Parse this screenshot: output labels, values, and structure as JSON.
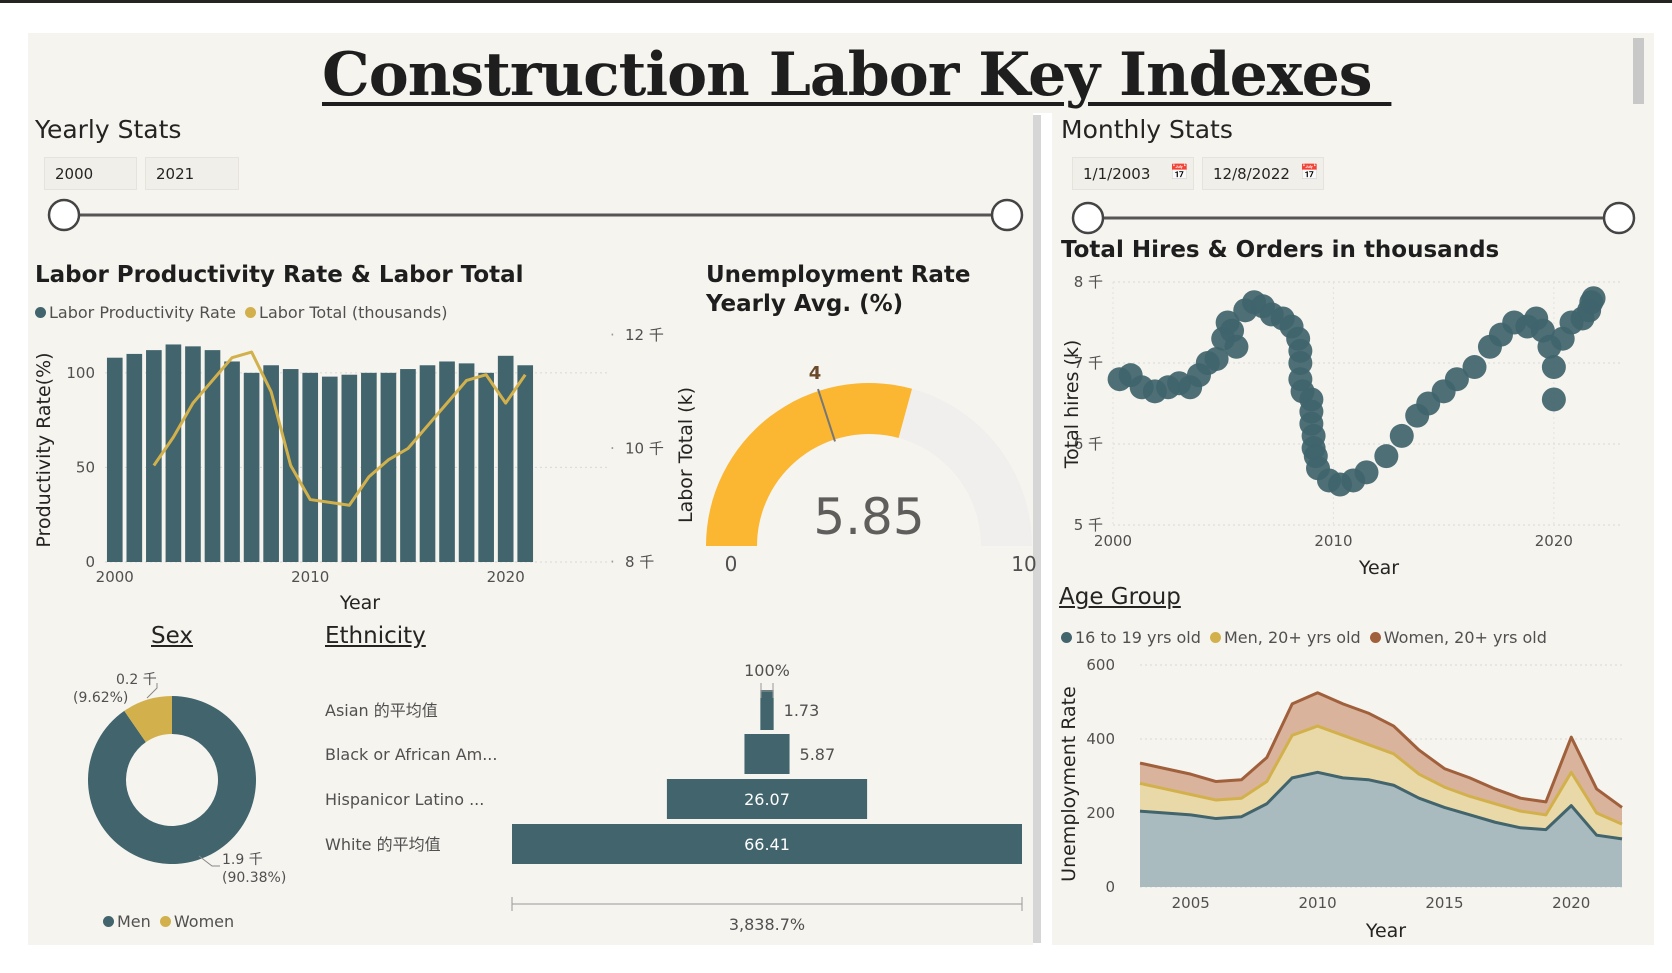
{
  "title": "Construction Labor Key Indexes ",
  "colors": {
    "teal": "#41646d",
    "gold": "#d2b14c",
    "brown": "#a0603c",
    "gaugeFill": "#fbb632",
    "gaugeTrack": "#f0efed",
    "panel": "#f6f4ef"
  },
  "yearly": {
    "section_label": "Yearly Stats",
    "range_start": "2000",
    "range_end": "2021"
  },
  "monthly": {
    "section_label": "Monthly Stats",
    "date_start": "1/1/2003",
    "date_end": "12/8/2022",
    "calendar_icon": "calendar-icon"
  },
  "productivity": {
    "title": "Labor Productivity Rate & Labor Total",
    "legend": [
      "Labor Productivity Rate",
      "Labor Total (thousands)"
    ],
    "chart_data": {
      "type": "bar",
      "xlabel": "Year",
      "ylabel": "Productivity Rate(%)",
      "y2label": "Labor Total (k)",
      "ylim": [
        0,
        120
      ],
      "y2lim": [
        8,
        12
      ],
      "x_ticks": [
        "2000",
        "2010",
        "2020"
      ],
      "y_ticks": [
        "0",
        "50",
        "100"
      ],
      "y2_ticks": [
        "8 千",
        "10 千",
        "12 千"
      ],
      "categories": [
        2000,
        2001,
        2002,
        2003,
        2004,
        2005,
        2006,
        2007,
        2008,
        2009,
        2010,
        2011,
        2012,
        2013,
        2014,
        2015,
        2016,
        2017,
        2018,
        2019,
        2020,
        2021
      ],
      "series": [
        {
          "name": "Labor Productivity Rate",
          "type": "bar",
          "values": [
            108,
            110,
            112,
            115,
            114,
            112,
            106,
            100,
            104,
            102,
            100,
            98,
            99,
            100,
            100,
            102,
            104,
            106,
            105,
            100,
            109,
            104
          ]
        },
        {
          "name": "Labor Total (thousands)",
          "type": "line",
          "values": [
            null,
            null,
            9.7,
            10.2,
            10.8,
            11.2,
            11.6,
            11.7,
            11.0,
            9.7,
            9.1,
            9.05,
            9.0,
            9.5,
            9.8,
            10.0,
            10.4,
            10.8,
            11.2,
            11.3,
            10.8,
            11.3
          ]
        }
      ]
    }
  },
  "unemployment_gauge": {
    "title_line1": "Unemployment Rate",
    "title_line2": "Yearly Avg. (%)",
    "chart_data": {
      "type": "gauge",
      "value": 5.85,
      "value_label": "5.85",
      "target": 4,
      "target_label": "4",
      "min": 0,
      "max": 10,
      "min_label": "0",
      "max_label": "10"
    }
  },
  "hires": {
    "title": "Total Hires & Orders in thousands",
    "chart_data": {
      "type": "scatter",
      "xlabel": "Year",
      "ylabel": "Total hires (k)",
      "xlim": [
        2000,
        2023
      ],
      "ylim": [
        5,
        8
      ],
      "x_ticks": [
        "2000",
        "2010",
        "2020"
      ],
      "y_ticks": [
        "5 千",
        "6 千",
        "7 千",
        "8 千"
      ],
      "points": [
        [
          2000.3,
          6.8
        ],
        [
          2000.8,
          6.85
        ],
        [
          2001.3,
          6.7
        ],
        [
          2001.9,
          6.65
        ],
        [
          2002.5,
          6.7
        ],
        [
          2003.0,
          6.75
        ],
        [
          2003.5,
          6.7
        ],
        [
          2003.9,
          6.85
        ],
        [
          2004.3,
          7.0
        ],
        [
          2004.7,
          7.05
        ],
        [
          2005.0,
          7.3
        ],
        [
          2005.2,
          7.5
        ],
        [
          2005.4,
          7.4
        ],
        [
          2005.6,
          7.2
        ],
        [
          2006.0,
          7.65
        ],
        [
          2006.4,
          7.75
        ],
        [
          2006.8,
          7.7
        ],
        [
          2007.2,
          7.6
        ],
        [
          2007.7,
          7.55
        ],
        [
          2008.1,
          7.45
        ],
        [
          2008.4,
          7.3
        ],
        [
          2008.5,
          7.15
        ],
        [
          2008.5,
          7.0
        ],
        [
          2008.5,
          6.8
        ],
        [
          2008.6,
          6.65
        ],
        [
          2009.0,
          6.55
        ],
        [
          2009.0,
          6.4
        ],
        [
          2009.0,
          6.25
        ],
        [
          2009.1,
          6.1
        ],
        [
          2009.1,
          5.95
        ],
        [
          2009.2,
          5.85
        ],
        [
          2009.3,
          5.7
        ],
        [
          2009.8,
          5.55
        ],
        [
          2010.3,
          5.5
        ],
        [
          2010.9,
          5.55
        ],
        [
          2011.5,
          5.65
        ],
        [
          2012.4,
          5.85
        ],
        [
          2013.1,
          6.1
        ],
        [
          2013.8,
          6.35
        ],
        [
          2014.3,
          6.5
        ],
        [
          2015.0,
          6.65
        ],
        [
          2015.6,
          6.8
        ],
        [
          2016.4,
          6.95
        ],
        [
          2017.1,
          7.2
        ],
        [
          2017.6,
          7.35
        ],
        [
          2018.2,
          7.5
        ],
        [
          2018.8,
          7.45
        ],
        [
          2019.2,
          7.55
        ],
        [
          2019.5,
          7.4
        ],
        [
          2019.8,
          7.2
        ],
        [
          2020.0,
          6.95
        ],
        [
          2020.0,
          6.55
        ],
        [
          2020.4,
          7.3
        ],
        [
          2020.8,
          7.5
        ],
        [
          2021.3,
          7.55
        ],
        [
          2021.6,
          7.65
        ],
        [
          2021.7,
          7.75
        ],
        [
          2021.8,
          7.8
        ]
      ]
    }
  },
  "sex": {
    "title": "Sex",
    "legend": [
      "Men",
      "Women"
    ],
    "chart_data": {
      "type": "pie",
      "categories": [
        "Men",
        "Women"
      ],
      "values": [
        1.9,
        0.2
      ],
      "labels": [
        "1.9 千",
        "0.2 千"
      ],
      "percent_labels": [
        "(90.38%)",
        "(9.62%)"
      ],
      "percents": [
        90.38,
        9.62
      ]
    }
  },
  "ethnicity": {
    "title": "Ethnicity",
    "chart_data": {
      "type": "bar",
      "orientation": "funnel",
      "categories": [
        "Asian 的平均值",
        "Black or African Am...",
        "Hispanicor Latino ...",
        "White 的平均值"
      ],
      "values": [
        1.73,
        5.87,
        26.07,
        66.41
      ],
      "value_labels": [
        "1.73",
        "5.87",
        "26.07",
        "66.41"
      ],
      "top_label": "100%",
      "bottom_label": "3,838.7%"
    }
  },
  "age": {
    "title": "Age Group",
    "legend": [
      "16 to 19 yrs old",
      "Men, 20+ yrs old",
      "Women, 20+ yrs old"
    ],
    "chart_data": {
      "type": "area",
      "xlabel": "Year",
      "ylabel": "Unemployment Rate",
      "ylim": [
        0,
        600
      ],
      "xlim": [
        2003,
        2022
      ],
      "x_ticks": [
        "2005",
        "2010",
        "2015",
        "2020"
      ],
      "y_ticks": [
        "0",
        "200",
        "400",
        "600"
      ],
      "x": [
        2003,
        2004,
        2005,
        2006,
        2007,
        2008,
        2009,
        2010,
        2011,
        2012,
        2013,
        2014,
        2015,
        2016,
        2017,
        2018,
        2019,
        2020,
        2021,
        2022
      ],
      "series": [
        {
          "name": "16 to 19 yrs old",
          "values": [
            205,
            200,
            195,
            185,
            190,
            225,
            295,
            310,
            295,
            290,
            275,
            240,
            215,
            195,
            175,
            160,
            155,
            220,
            140,
            130
          ]
        },
        {
          "name": "Men, 20+ yrs old",
          "values": [
            280,
            265,
            250,
            235,
            240,
            285,
            410,
            435,
            410,
            385,
            360,
            305,
            270,
            245,
            225,
            205,
            195,
            310,
            200,
            170
          ]
        },
        {
          "name": "Women, 20+ yrs old",
          "values": [
            335,
            320,
            305,
            285,
            290,
            350,
            495,
            525,
            495,
            470,
            435,
            370,
            320,
            295,
            265,
            240,
            230,
            405,
            265,
            215
          ]
        }
      ]
    }
  }
}
